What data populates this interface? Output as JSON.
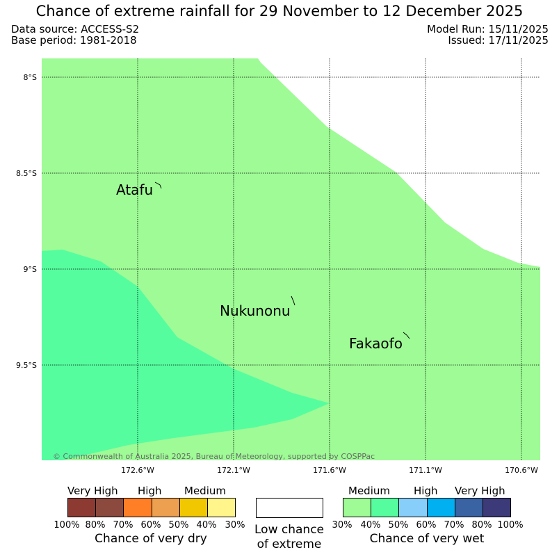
{
  "title": "Chance of extreme rainfall for 29 November to 12 December 2025",
  "header": {
    "data_source": "Data source: ACCESS-S2",
    "base_period": "Base period: 1981-2018",
    "model_run": "Model Run: 15/11/2025",
    "issued": "Issued: 17/11/2025"
  },
  "map": {
    "lat_labels": [
      "8°S",
      "8.5°S",
      "9°S",
      "9.5°S"
    ],
    "lon_labels": [
      "172.6°W",
      "172.1°W",
      "171.6°W",
      "171.1°W",
      "170.6°W"
    ],
    "places": [
      "Atafu",
      "Nukunonu",
      "Fakaofo"
    ],
    "copyright": "© Commonwealth of Australia 2025, Bureau of Meteorology, supported by COSPPac",
    "colors": {
      "medium_wet_30_40": "#9efb95",
      "medium_wet_40_50": "#55fd9f",
      "low_chance": "#ffffff"
    }
  },
  "legend": {
    "dry": {
      "categories": [
        "Very High",
        "High",
        "Medium"
      ],
      "ticks": [
        "100%",
        "80%",
        "70%",
        "60%",
        "50%",
        "40%",
        "30%"
      ],
      "label": "Chance of very dry",
      "colors": [
        "#8c3a32",
        "#8b4a3d",
        "#ff7f27",
        "#eda04f",
        "#f1c800",
        "#fff58a"
      ]
    },
    "low": {
      "line1": "Low chance",
      "line2": "of extreme",
      "color": "#ffffff"
    },
    "wet": {
      "categories": [
        "Medium",
        "High",
        "Very High"
      ],
      "ticks": [
        "30%",
        "40%",
        "50%",
        "60%",
        "70%",
        "80%",
        "100%"
      ],
      "label": "Chance of very wet",
      "colors": [
        "#9efb95",
        "#55fd9f",
        "#87cefa",
        "#00b0f0",
        "#3a63a3",
        "#3d3a7a"
      ]
    }
  }
}
